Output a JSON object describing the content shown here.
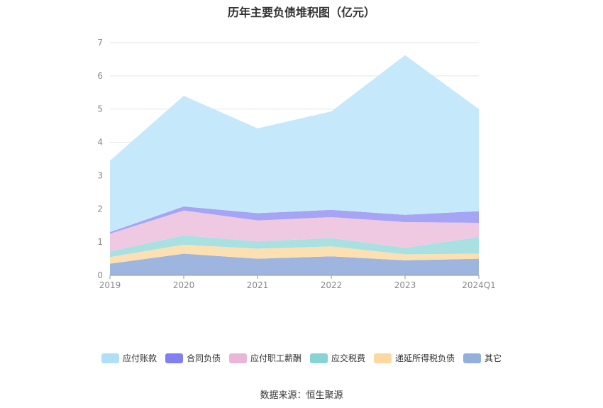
{
  "chart_data": {
    "type": "area",
    "stacked": true,
    "title": "历年主要负债堆积图（亿元）",
    "categories": [
      "2019",
      "2020",
      "2021",
      "2022",
      "2023",
      "2024Q1"
    ],
    "yticks": [
      "0",
      "1",
      "2",
      "3",
      "4",
      "5",
      "6",
      "7"
    ],
    "ylim": [
      0,
      7
    ],
    "grid": true,
    "legend_position": "bottom",
    "series": [
      {
        "name": "其它",
        "color": "#9db5df",
        "values": [
          0.35,
          0.65,
          0.5,
          0.57,
          0.45,
          0.5
        ]
      },
      {
        "name": "递延所得税负债",
        "color": "#fde0b1",
        "values": [
          0.2,
          0.27,
          0.3,
          0.3,
          0.18,
          0.15
        ]
      },
      {
        "name": "应交税费",
        "color": "#a9e0e2",
        "values": [
          0.17,
          0.28,
          0.22,
          0.25,
          0.2,
          0.5
        ]
      },
      {
        "name": "应付职工薪酬",
        "color": "#efc9e2",
        "values": [
          0.53,
          0.75,
          0.63,
          0.63,
          0.77,
          0.43
        ]
      },
      {
        "name": "合同负债",
        "color": "#a5a4f5",
        "values": [
          0.05,
          0.12,
          0.22,
          0.22,
          0.22,
          0.35
        ]
      },
      {
        "name": "应付账款",
        "color": "#c5e9fa",
        "values": [
          2.15,
          3.33,
          2.55,
          2.96,
          4.8,
          3.07
        ]
      }
    ]
  },
  "legend": [
    {
      "label": "应付账款",
      "color": "#aee0f8"
    },
    {
      "label": "合同负债",
      "color": "#8080f2"
    },
    {
      "label": "应付职工薪酬",
      "color": "#ebb7d8"
    },
    {
      "label": "应交税费",
      "color": "#86d4d6"
    },
    {
      "label": "递延所得税负债",
      "color": "#fdd89f"
    },
    {
      "label": "其它",
      "color": "#93afdb"
    }
  ],
  "source": "数据来源：恒生聚源"
}
